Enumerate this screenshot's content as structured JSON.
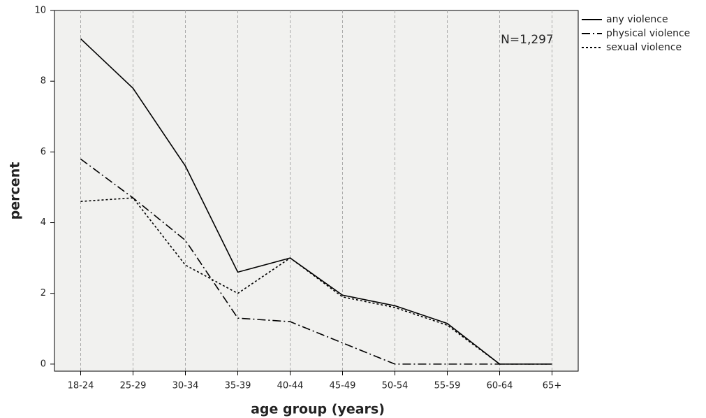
{
  "chart_data": {
    "type": "line",
    "annotation": "N=1,297",
    "x_label": "age group (years)",
    "y_label": "percent",
    "categories": [
      "18-24",
      "25-29",
      "30-34",
      "35-39",
      "40-44",
      "45-49",
      "50-54",
      "55-59",
      "60-64",
      "65+"
    ],
    "series": [
      {
        "name": "any violence",
        "color": "#000000",
        "dash": "solid",
        "values": [
          9.2,
          7.8,
          5.6,
          2.6,
          3.0,
          1.95,
          1.65,
          1.15,
          0,
          0
        ]
      },
      {
        "name": "physical violence",
        "color": "#000000",
        "dash": "dashdot",
        "values": [
          5.8,
          4.7,
          3.5,
          1.3,
          1.2,
          0.6,
          0,
          0,
          0,
          0
        ]
      },
      {
        "name": "sexual violence",
        "color": "#000000",
        "dash": "dotted",
        "values": [
          4.6,
          4.7,
          2.8,
          2.0,
          3.0,
          1.9,
          1.6,
          1.1,
          0,
          0
        ]
      }
    ],
    "ylim": [
      -0.2,
      10
    ],
    "yticks": [
      0,
      2,
      4,
      6,
      8,
      10
    ],
    "grid": true,
    "legend": "outside-top-right"
  }
}
